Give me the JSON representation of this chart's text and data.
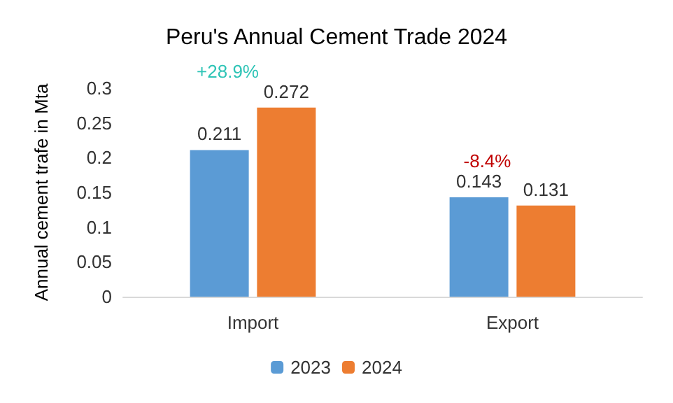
{
  "chart_data": {
    "type": "bar",
    "title": "Peru's Annual Cement Trade 2024",
    "ylabel": "Annual cement trafe in Mta",
    "categories": [
      "Import",
      "Export"
    ],
    "series": [
      {
        "name": "2023",
        "color": "#5b9bd5",
        "values": [
          0.211,
          0.143
        ]
      },
      {
        "name": "2024",
        "color": "#ed7d31",
        "values": [
          0.272,
          0.131
        ]
      }
    ],
    "ylim": [
      0,
      0.3
    ],
    "yticks": [
      0,
      0.05,
      0.1,
      0.15,
      0.2,
      0.25,
      0.3
    ],
    "grid": false,
    "legend": "bottom",
    "data_labels": true,
    "annotations": [
      "+28.9%",
      "-8.4%"
    ]
  }
}
